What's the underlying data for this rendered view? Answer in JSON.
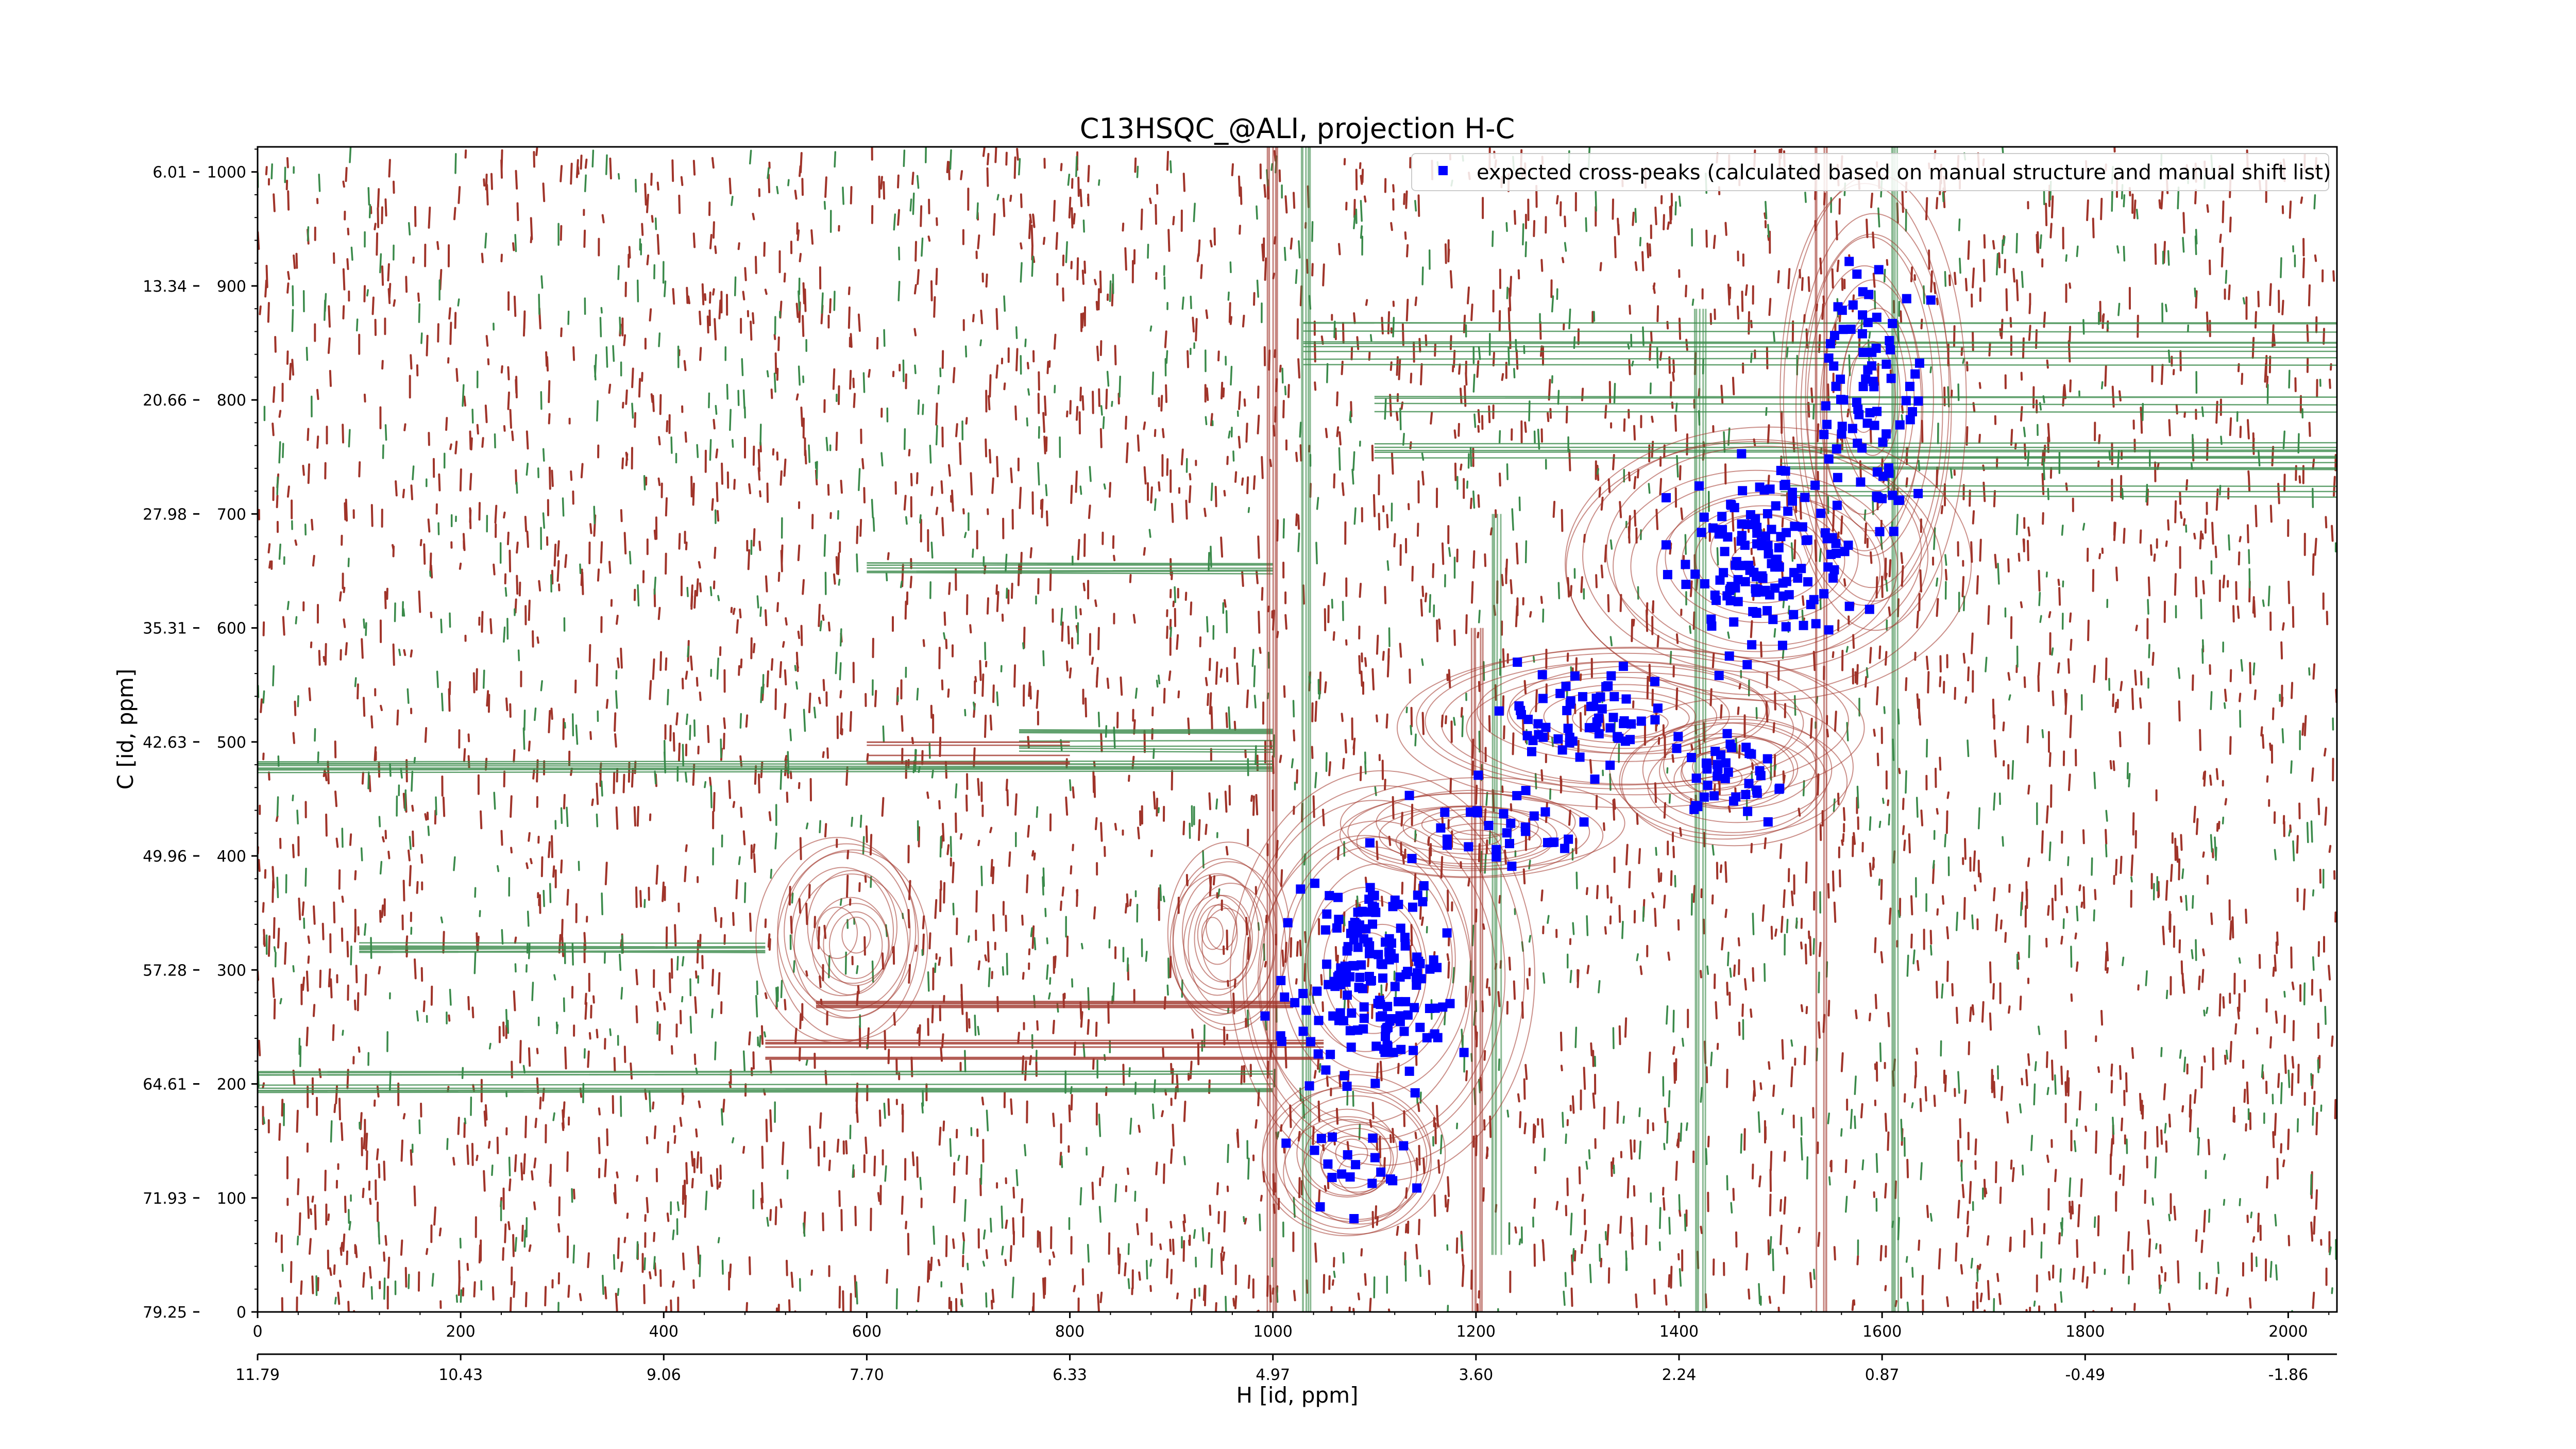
{
  "chart_data": {
    "type": "contour",
    "title": "C13HSQC_@ALI, projection H-C",
    "xlabel": "H [id, ppm]",
    "ylabel": "C [id, ppm]",
    "x_index_ticks": [
      "0",
      "200",
      "400",
      "600",
      "800",
      "1000",
      "1200",
      "1400",
      "1600",
      "1800",
      "2000"
    ],
    "x_ppm_ticks": [
      "11.79",
      "10.43",
      "9.06",
      "7.70",
      "6.33",
      "4.97",
      "3.60",
      "2.24",
      "0.87",
      "-0.49",
      "-1.86"
    ],
    "y_index_ticks": [
      "1000",
      "900",
      "800",
      "700",
      "600",
      "500",
      "400",
      "300",
      "200",
      "100",
      "0"
    ],
    "y_ppm_ticks": [
      "6.01",
      "13.34",
      "20.66",
      "27.98",
      "35.31",
      "42.63",
      "49.96",
      "57.28",
      "64.61",
      "71.93",
      "79.25"
    ],
    "xlim": [
      0,
      2048
    ],
    "ylim": [
      0,
      1022
    ],
    "legend": {
      "label": "expected cross-peaks (calculated based on manual structure and manual shift list)",
      "position": "top-right"
    },
    "colors": {
      "positive_contours": "#a0342a",
      "negative_contours": "#3a8a4a",
      "expected_peaks": "#0000ff"
    },
    "peak_clusters": [
      {
        "x": 1100,
        "y": 300,
        "n": 170,
        "sx": 55,
        "sy": 65
      },
      {
        "x": 1480,
        "y": 660,
        "n": 140,
        "sx": 60,
        "sy": 55
      },
      {
        "x": 1310,
        "y": 520,
        "n": 60,
        "sx": 55,
        "sy": 30
      },
      {
        "x": 1590,
        "y": 800,
        "n": 80,
        "sx": 35,
        "sy": 80
      },
      {
        "x": 1450,
        "y": 470,
        "n": 40,
        "sx": 40,
        "sy": 25
      },
      {
        "x": 1220,
        "y": 430,
        "n": 30,
        "sx": 60,
        "sy": 25
      },
      {
        "x": 1080,
        "y": 120,
        "n": 20,
        "sx": 50,
        "sy": 35
      }
    ]
  }
}
